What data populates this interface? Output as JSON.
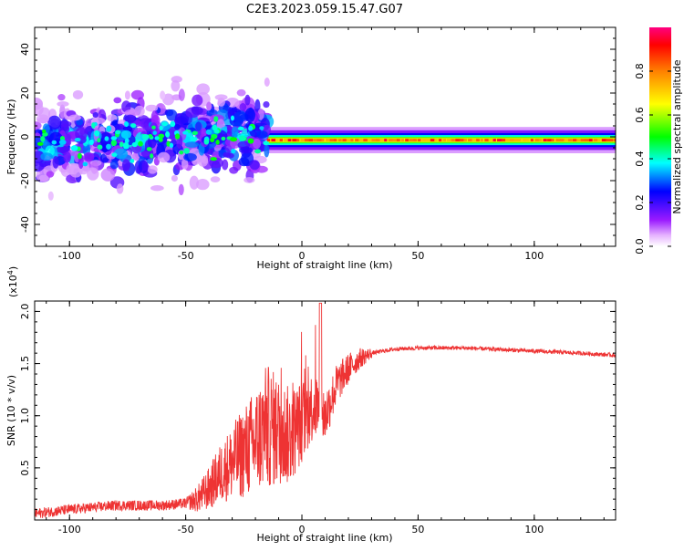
{
  "title": "C2E3.2023.059.15.47.G07",
  "chart_data": [
    {
      "type": "heatmap",
      "xlabel": "Height of straight line (km)",
      "ylabel": "Frequency (Hz)",
      "xlim": [
        -115,
        135
      ],
      "ylim": [
        -50,
        50
      ],
      "xticks": [
        -100,
        -50,
        0,
        50,
        100
      ],
      "yticks": [
        -40,
        -20,
        0,
        20,
        40
      ],
      "colorbar": {
        "label": "Normalized spectral amplitude",
        "range": [
          0,
          1
        ],
        "ticks": [
          "0.0",
          "0.2",
          "0.4",
          "0.6",
          "0.8"
        ],
        "tick_values": [
          0.0,
          0.2,
          0.4,
          0.6,
          0.8
        ],
        "colors": [
          "#ffffff",
          "#e6b3ff",
          "#8000ff",
          "#0000ff",
          "#00ffff",
          "#00ff00",
          "#ffff00",
          "#ff8000",
          "#ff0000",
          "#ff0080"
        ]
      },
      "regions": [
        {
          "name": "scattered",
          "x": [
            -115,
            -15
          ],
          "center_hz_start": -4,
          "center_hz_end": 2,
          "spread_hz": 8,
          "peak_amplitude": 0.45
        },
        {
          "name": "stable",
          "x": [
            -15,
            135
          ],
          "center_hz": -1.5,
          "spread_hz": 2,
          "peak_amplitude": 0.95
        }
      ],
      "outliers": [
        {
          "x": -15,
          "y": 25,
          "amplitude": 0.05
        },
        {
          "x": -40,
          "y": 14,
          "amplitude": 0.08
        },
        {
          "x": -75,
          "y": 19,
          "amplitude": 0.05
        },
        {
          "x": -60,
          "y": 19,
          "amplitude": 0.04
        },
        {
          "x": -108,
          "y": -27,
          "amplitude": 0.04
        }
      ]
    },
    {
      "type": "line",
      "xlabel": "Height of straight line (km)",
      "ylabel": "SNR (10 * v/v)",
      "yscale_label": "(x10",
      "yscale_exp": "4",
      "yscale_close": ")",
      "xlim": [
        -115,
        135
      ],
      "ylim": [
        0,
        2.1
      ],
      "xticks": [
        -100,
        -50,
        0,
        50,
        100
      ],
      "yticks": [
        "0.5",
        "1.0",
        "1.5",
        "2.0"
      ],
      "ytick_values": [
        0.5,
        1.0,
        1.5,
        2.0
      ],
      "color": "#ee3333",
      "series": [
        {
          "x": [
            -115,
            -100,
            -80,
            -60,
            -50,
            -45,
            -40,
            -35,
            -30,
            -25,
            -20,
            -15,
            -10,
            -5,
            0,
            5,
            10,
            15,
            20,
            25,
            30,
            40,
            50,
            60,
            70,
            80,
            90,
            100,
            110,
            120,
            135
          ],
          "y": [
            0.06,
            0.1,
            0.14,
            0.14,
            0.16,
            0.2,
            0.3,
            0.45,
            0.55,
            0.65,
            0.75,
            0.9,
            0.85,
            0.8,
            0.95,
            1.1,
            1.0,
            1.3,
            1.45,
            1.55,
            1.6,
            1.64,
            1.65,
            1.65,
            1.65,
            1.64,
            1.63,
            1.62,
            1.61,
            1.6,
            1.58
          ]
        }
      ]
    }
  ]
}
